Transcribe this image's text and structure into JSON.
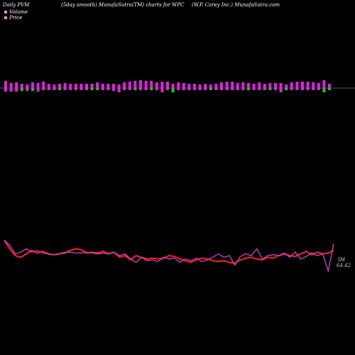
{
  "header": {
    "left": "Daily PVM",
    "mid": "(5day smooth) MunafaSutra(TM) charts for WPC",
    "right": "(W.P. Carey Inc.) MunafaSutra.com"
  },
  "legend": {
    "volume": "Volume",
    "price": "Price"
  },
  "colors": {
    "background": "#000000",
    "volume_up": "#e020e0",
    "volume_down": "#22c422",
    "price": "#ff2020",
    "pvm": "#d040d0",
    "baseline": "#888888",
    "legend_volume": "#ff88ff",
    "legend_price": "#ff9966"
  },
  "chart_data": {
    "type": "bar+line",
    "volume_bars": [
      {
        "up": 10,
        "down": 5
      },
      {
        "up": 7,
        "down": 5
      },
      {
        "up": 8,
        "down": 5
      },
      {
        "up": 6,
        "down": 4
      },
      {
        "up": 5,
        "down": 4
      },
      {
        "up": 8,
        "down": 4
      },
      {
        "up": 7,
        "down": 5
      },
      {
        "up": 9,
        "down": 3
      },
      {
        "up": 6,
        "down": 3
      },
      {
        "up": 5,
        "down": 3
      },
      {
        "up": 6,
        "down": 3
      },
      {
        "up": 7,
        "down": 3
      },
      {
        "up": 6,
        "down": 3
      },
      {
        "up": 6,
        "down": 3
      },
      {
        "up": 6,
        "down": 3
      },
      {
        "up": 6,
        "down": 3
      },
      {
        "up": 6,
        "down": 3
      },
      {
        "up": 8,
        "down": 3
      },
      {
        "up": 6,
        "down": 3
      },
      {
        "up": 6,
        "down": 3
      },
      {
        "up": 6,
        "down": 4
      },
      {
        "up": 5,
        "down": 6
      },
      {
        "up": 8,
        "down": 3
      },
      {
        "up": 9,
        "down": 3
      },
      {
        "up": 10,
        "down": 3
      },
      {
        "up": 11,
        "down": 3
      },
      {
        "up": 10,
        "down": 3
      },
      {
        "up": 10,
        "down": 3
      },
      {
        "up": 8,
        "down": 3
      },
      {
        "up": 9,
        "down": 6
      },
      {
        "up": 9,
        "down": 3
      },
      {
        "up": 6,
        "down": 6
      },
      {
        "up": 8,
        "down": 3
      },
      {
        "up": 7,
        "down": 3
      },
      {
        "up": 6,
        "down": 3
      },
      {
        "up": 6,
        "down": 3
      },
      {
        "up": 5,
        "down": 3
      },
      {
        "up": 6,
        "down": 3
      },
      {
        "up": 5,
        "down": 3
      },
      {
        "up": 6,
        "down": 3
      },
      {
        "up": 8,
        "down": 3
      },
      {
        "up": 9,
        "down": 3
      },
      {
        "up": 9,
        "down": 3
      },
      {
        "up": 7,
        "down": 3
      },
      {
        "up": 8,
        "down": 3
      },
      {
        "up": 7,
        "down": 3
      },
      {
        "up": 6,
        "down": 3
      },
      {
        "up": 8,
        "down": 3
      },
      {
        "up": 6,
        "down": 3
      },
      {
        "up": 7,
        "down": 3
      },
      {
        "up": 7,
        "down": 3
      },
      {
        "up": 7,
        "down": 6
      },
      {
        "up": 5,
        "down": 3
      },
      {
        "up": 8,
        "down": 3
      },
      {
        "up": 9,
        "down": 3
      },
      {
        "up": 9,
        "down": 3
      },
      {
        "up": 9,
        "down": 3
      },
      {
        "up": 8,
        "down": 3
      },
      {
        "up": 7,
        "down": 3
      },
      {
        "up": 11,
        "down": 6
      },
      {
        "up": 6,
        "down": 3
      }
    ],
    "price_series": [
      88,
      78,
      70,
      68,
      72,
      76,
      73,
      75,
      72,
      71,
      72,
      73,
      76,
      78,
      77,
      73,
      74,
      73,
      75,
      72,
      74,
      68,
      70,
      65,
      70,
      68,
      66,
      67,
      66,
      67,
      70,
      69,
      66,
      64,
      62,
      65,
      67,
      66,
      64,
      63,
      64,
      62,
      61,
      65,
      67,
      68,
      66,
      65,
      68,
      67,
      70,
      72,
      70,
      69,
      72,
      75,
      71,
      74,
      72,
      73,
      76
    ],
    "pvm_series": [
      88,
      82,
      72,
      74,
      78,
      74,
      76,
      73,
      72,
      71,
      72,
      74,
      74,
      73,
      73,
      74,
      73,
      72,
      73,
      72,
      74,
      70,
      72,
      66,
      62,
      68,
      64,
      65,
      63,
      68,
      66,
      67,
      62,
      66,
      64,
      67,
      63,
      65,
      68,
      72,
      68,
      70,
      59,
      69,
      72,
      70,
      78,
      66,
      70,
      71,
      70,
      73,
      68,
      74,
      66,
      69,
      73,
      70,
      72,
      52,
      84
    ],
    "last_price_label": "64.42",
    "last_price_prefix": "IM"
  }
}
